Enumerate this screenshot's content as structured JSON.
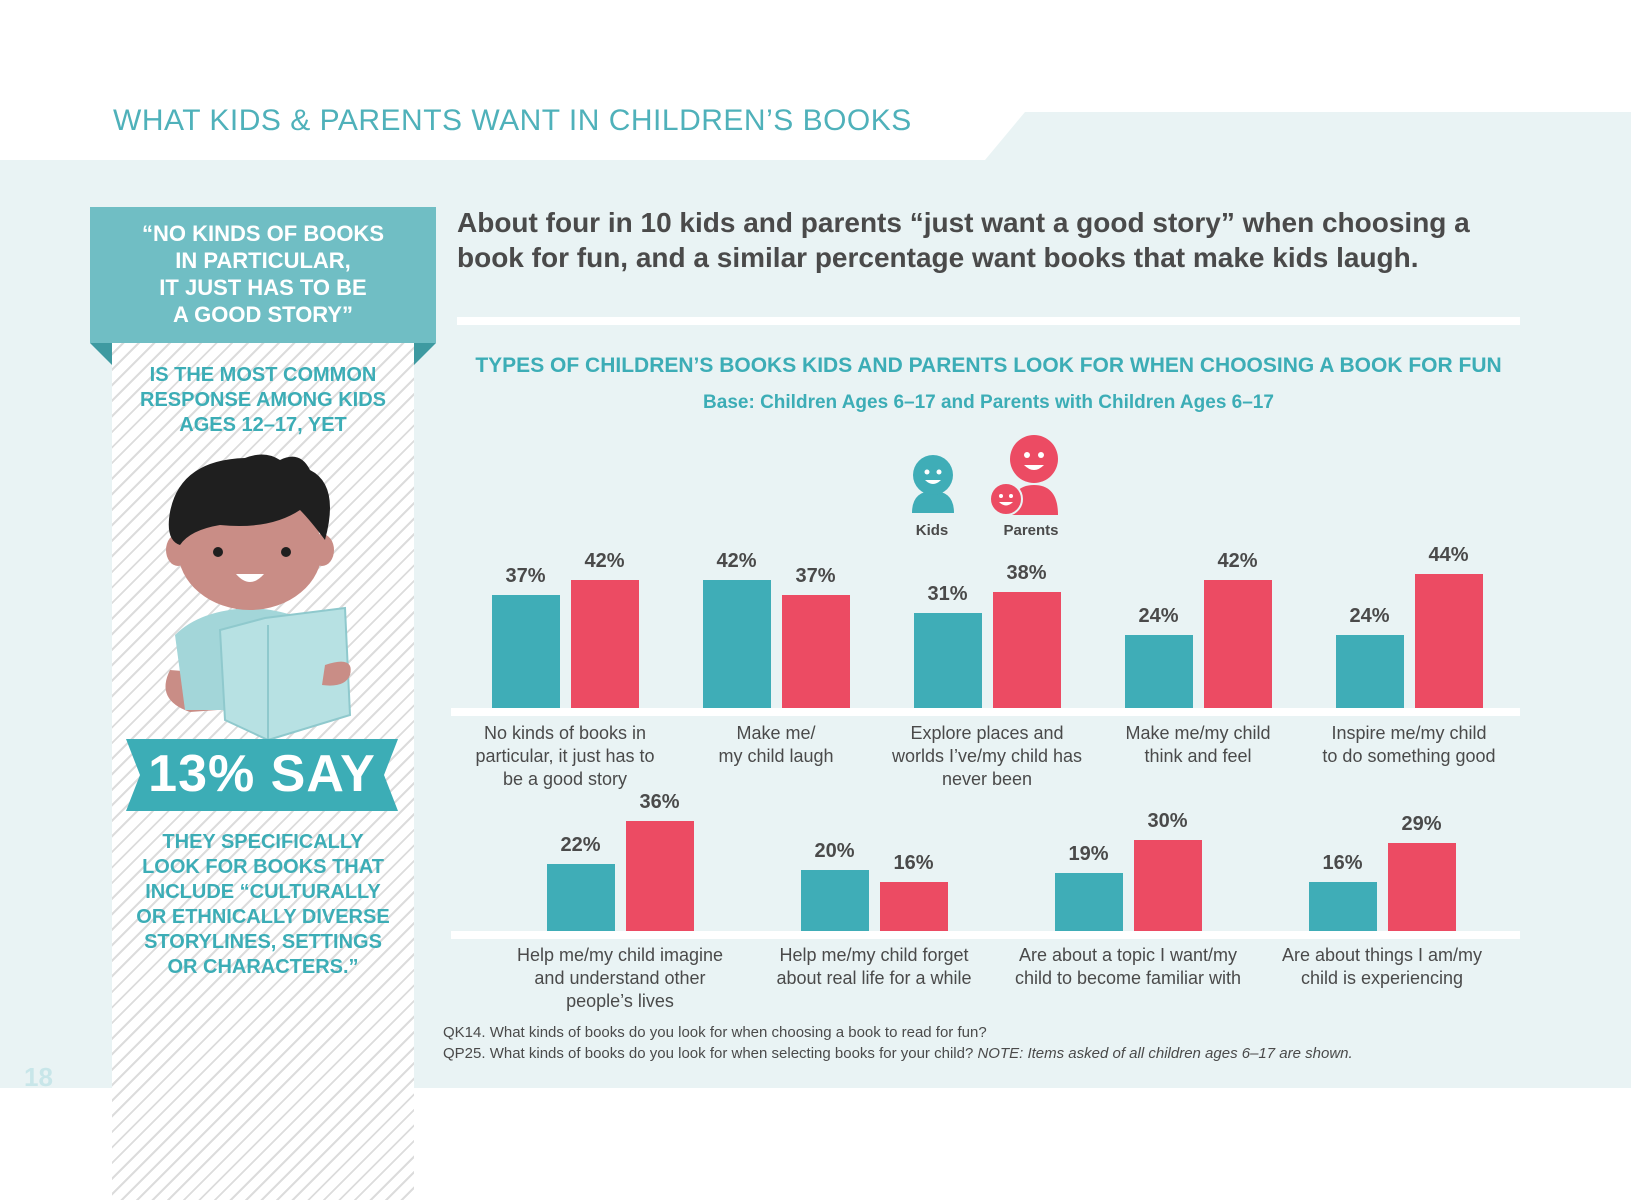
{
  "page": {
    "title": "WHAT KIDS & PARENTS WANT IN CHILDREN’S BOOKS",
    "page_number": "18",
    "headline": "About four in 10 kids and parents “just want a good story” when choosing a book for fun, and a similar percentage want books that make kids laugh."
  },
  "sidebar": {
    "quote": "“NO KINDS OF BOOKS IN PARTICULAR, IT JUST HAS TO BE A GOOD STORY”",
    "quote_lines": [
      "“NO KINDS OF BOOKS",
      "IN PARTICULAR,",
      "IT JUST HAS TO BE",
      "A GOOD STORY”"
    ],
    "intro_lines": [
      "IS THE MOST COMMON",
      "RESPONSE AMONG KIDS",
      "AGES 12–17, YET"
    ],
    "stat": "13% SAY",
    "outro_lines": [
      "THEY SPECIFICALLY",
      "LOOK FOR BOOKS THAT",
      "INCLUDE “CULTURALLY",
      "OR ETHNICALLY DIVERSE",
      "STORYLINES, SETTINGS",
      "OR CHARACTERS.”"
    ]
  },
  "colors": {
    "kids": "#3fadb7",
    "parents": "#ec4b63",
    "accent": "#3cadb6"
  },
  "chart_data": {
    "type": "bar",
    "title": "TYPES OF CHILDREN’S BOOKS KIDS AND PARENTS LOOK FOR WHEN CHOOSING A BOOK FOR FUN",
    "subtitle": "Base: Children Ages 6–17 and Parents with Children Ages 6–17",
    "legend": [
      "Kids",
      "Parents"
    ],
    "rows": [
      {
        "categories": [
          [
            "No kinds of books in",
            "particular, it just has to",
            "be a good story"
          ],
          [
            "Make me/",
            "my child laugh"
          ],
          [
            "Explore places and",
            "worlds I’ve/my child has",
            "never been"
          ],
          [
            "Make me/my child",
            "think and feel"
          ],
          [
            "Inspire me/my child",
            "to do something good"
          ]
        ],
        "series": [
          {
            "name": "Kids",
            "values": [
              37,
              42,
              31,
              24,
              24
            ]
          },
          {
            "name": "Parents",
            "values": [
              42,
              37,
              38,
              42,
              44
            ]
          }
        ]
      },
      {
        "categories": [
          [
            "Help me/my child imagine",
            "and understand other",
            "people’s lives"
          ],
          [
            "Help me/my child forget",
            "about real life for a while"
          ],
          [
            "Are about a topic I want/my",
            "child to become familiar with"
          ],
          [
            "Are about things I am/my",
            "child is experiencing"
          ]
        ],
        "series": [
          {
            "name": "Kids",
            "values": [
              22,
              20,
              19,
              16
            ]
          },
          {
            "name": "Parents",
            "values": [
              36,
              16,
              30,
              29
            ]
          }
        ]
      }
    ],
    "unit": "%"
  },
  "footnotes": {
    "q1": "QK14. What kinds of books do you look for when choosing a book to read for fun?",
    "q2_main": "QP25. What kinds of books do you look for when selecting books for your child?",
    "q2_note": "NOTE: Items asked of all children ages 6–17 are shown."
  }
}
